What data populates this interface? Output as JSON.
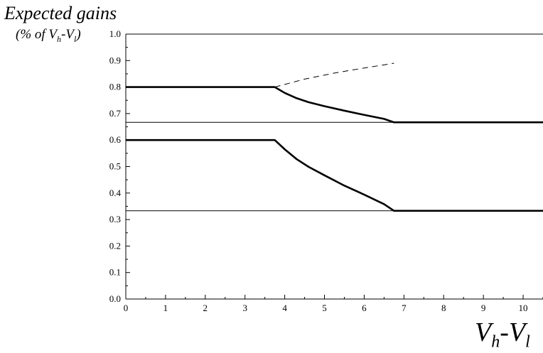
{
  "chart_data": {
    "type": "line",
    "ylabel_line1": "Expected gains",
    "ylabel_line2": {
      "open": "(% of V",
      "s1": "h",
      "dash": "-V",
      "s2": "l",
      "close": ")"
    },
    "xlabel": {
      "v1": "V",
      "s1": "h",
      "dash": "-V",
      "s2": "l"
    },
    "xlim": [
      0,
      10.5
    ],
    "ylim": [
      0,
      1.0
    ],
    "x_ticks": [
      "0",
      "1",
      "2",
      "3",
      "4",
      "5",
      "6",
      "7",
      "8",
      "9",
      "10"
    ],
    "y_ticks": [
      "0.0",
      "0.1",
      "0.2",
      "0.3",
      "0.4",
      "0.5",
      "0.6",
      "0.7",
      "0.8",
      "0.9",
      "1.0"
    ],
    "grid": false,
    "series": [
      {
        "style": "thick",
        "x": [
          0,
          3.75,
          4.0,
          4.3,
          4.6,
          5.0,
          5.5,
          6.0,
          6.5,
          6.75,
          10.5
        ],
        "y": [
          0.8,
          0.8,
          0.778,
          0.758,
          0.743,
          0.728,
          0.711,
          0.695,
          0.68,
          0.667,
          0.667
        ]
      },
      {
        "style": "thick",
        "x": [
          0,
          3.75,
          4.0,
          4.3,
          4.6,
          5.0,
          5.5,
          6.0,
          6.5,
          6.75,
          10.5
        ],
        "y": [
          0.6,
          0.6,
          0.565,
          0.528,
          0.499,
          0.467,
          0.428,
          0.394,
          0.358,
          0.333,
          0.333
        ]
      },
      {
        "style": "dashed",
        "x": [
          3.75,
          4.5,
          5.25,
          6.0,
          6.75
        ],
        "y": [
          0.8,
          0.83,
          0.853,
          0.872,
          0.89
        ]
      },
      {
        "style": "thin",
        "x": [
          0,
          10.5
        ],
        "y": [
          0.667,
          0.667
        ]
      },
      {
        "style": "thin",
        "x": [
          0,
          10.5
        ],
        "y": [
          0.333,
          0.333
        ]
      },
      {
        "style": "thin",
        "x": [
          0,
          10.5
        ],
        "y": [
          1.0,
          1.0
        ]
      }
    ]
  }
}
